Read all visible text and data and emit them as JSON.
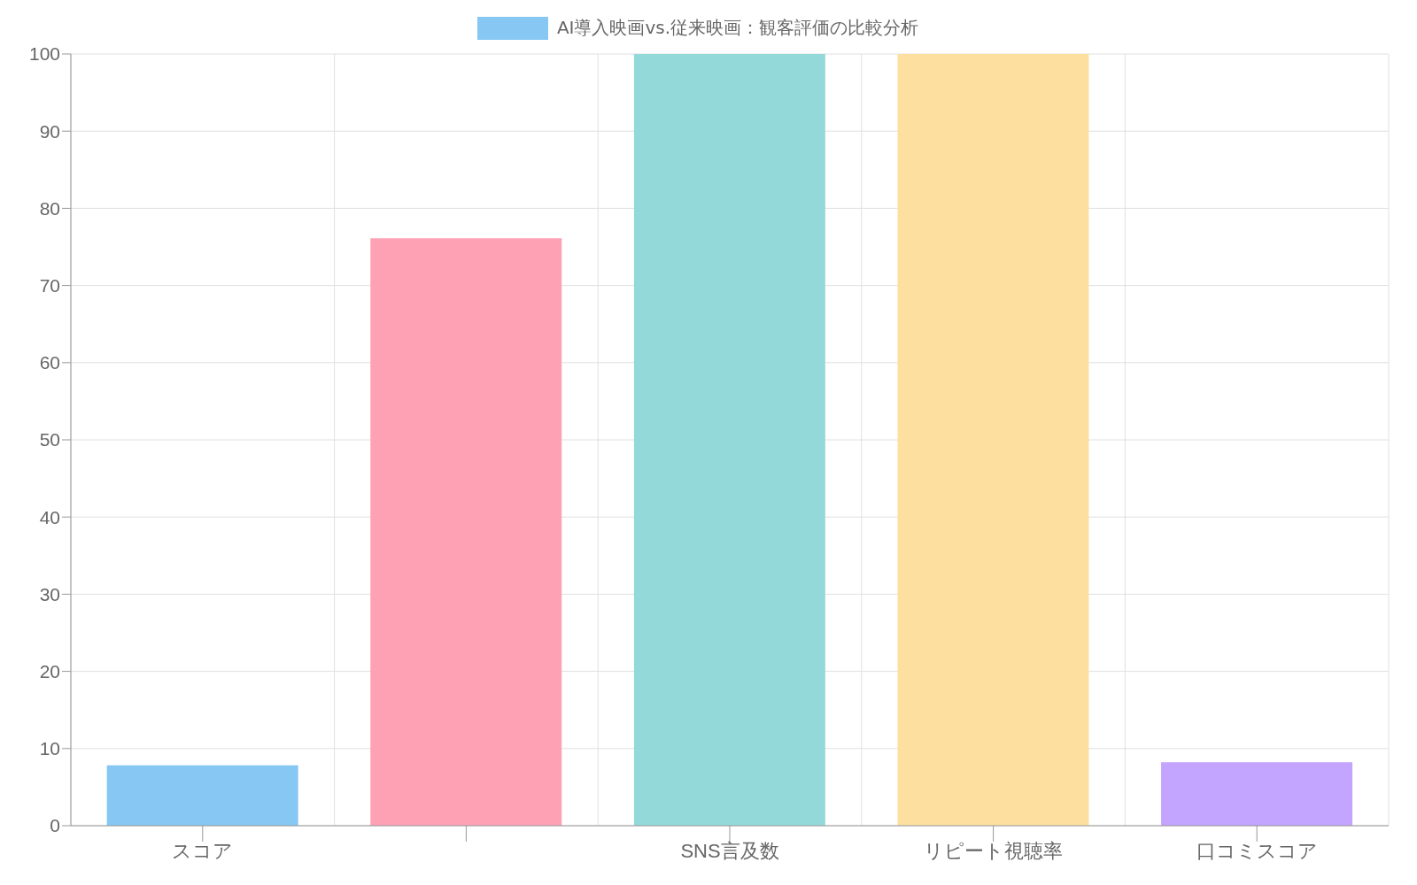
{
  "chart_data": {
    "type": "bar",
    "categories": [
      "スコア",
      null,
      "SNS言及数",
      "リピート視聴率",
      "口コミスコア"
    ],
    "series": [
      {
        "name": "AI導入映画vs.従来映画：観客評価の比較分析",
        "color": "#86c7f3",
        "colors": [
          "#86c7f3",
          "#ffa1b5",
          "#94d9d9",
          "#fde0a0",
          "#c3a4fe"
        ],
        "values": [
          7.7,
          76,
          100,
          100,
          8.1
        ]
      }
    ],
    "ylim": [
      0,
      100
    ],
    "yticks": [
      0,
      10,
      20,
      30,
      40,
      50,
      60,
      70,
      80,
      90,
      100
    ],
    "grid": true,
    "legend": "top"
  }
}
